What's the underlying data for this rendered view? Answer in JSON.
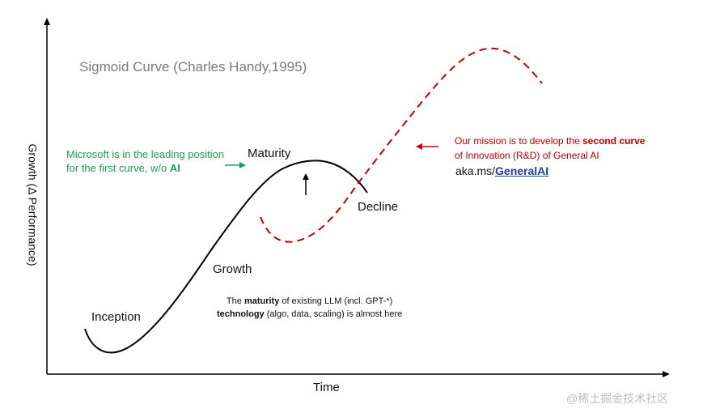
{
  "title": "Sigmoid Curve (Charles Handy,1995)",
  "axes": {
    "y_label": "Growth (Δ Performance)",
    "x_label": "Time"
  },
  "stages": {
    "inception": "Inception",
    "growth": "Growth",
    "maturity": "Maturity",
    "decline": "Decline"
  },
  "notes": {
    "microsoft_line1": "Microsoft is in the leading position",
    "microsoft_line2_prefix": "for the first curve, w/o ",
    "microsoft_line2_bold": "AI",
    "llm_line1_prefix": "The ",
    "llm_line1_bold": "maturity",
    "llm_line1_suffix": " of existing LLM (incl. GPT-*)",
    "llm_line2_bold": "technology",
    "llm_line2_suffix": " (algo, data, scaling) is almost here",
    "mission_line1_prefix": "Our mission is to develop the ",
    "mission_line1_bold": "second curve",
    "mission_line2": "of Innovation (R&D) of General AI",
    "link_prefix": "aka.ms/",
    "link_text": "GeneralAI"
  },
  "watermark": "@稀土掘金技术社区",
  "colors": {
    "first_curve": "#000000",
    "second_curve": "#c00000",
    "microsoft_note": "#1aa053",
    "mission_note": "#c00000",
    "link": "#1f3f9c",
    "title": "#7a7a7a"
  },
  "curves": {
    "first_curve": "solid black sigmoid (inception → growth → maturity → decline)",
    "second_curve": "dashed red sigmoid starting before the decline"
  }
}
